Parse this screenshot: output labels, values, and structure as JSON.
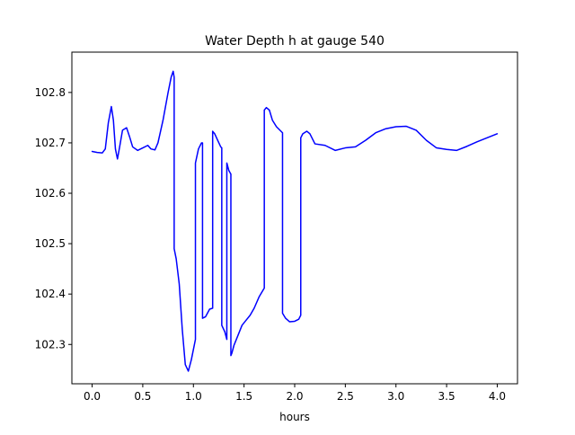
{
  "chart_data": {
    "type": "line",
    "title": "Water Depth h at gauge 540",
    "xlabel": "hours",
    "ylabel": "",
    "xlim": [
      -0.2,
      4.2
    ],
    "ylim": [
      102.222,
      102.88
    ],
    "xticks": [
      0.0,
      0.5,
      1.0,
      1.5,
      2.0,
      2.5,
      3.0,
      3.5,
      4.0
    ],
    "xtick_labels": [
      "0.0",
      "0.5",
      "1.0",
      "1.5",
      "2.0",
      "2.5",
      "3.0",
      "3.5",
      "4.0"
    ],
    "yticks": [
      102.3,
      102.4,
      102.5,
      102.6,
      102.7,
      102.8
    ],
    "ytick_labels": [
      "102.3",
      "102.4",
      "102.5",
      "102.6",
      "102.7",
      "102.8"
    ],
    "grid": false,
    "series": [
      {
        "color": "#0000ff",
        "x": [
          0.0,
          0.05,
          0.1,
          0.13,
          0.16,
          0.19,
          0.21,
          0.23,
          0.25,
          0.27,
          0.3,
          0.34,
          0.37,
          0.4,
          0.45,
          0.5,
          0.55,
          0.58,
          0.62,
          0.65,
          0.7,
          0.75,
          0.78,
          0.8,
          0.81,
          0.81,
          0.83,
          0.86,
          0.89,
          0.92,
          0.95,
          0.98,
          1.02,
          1.02,
          1.05,
          1.08,
          1.09,
          1.09,
          1.12,
          1.16,
          1.19,
          1.19,
          1.21,
          1.24,
          1.27,
          1.28,
          1.28,
          1.31,
          1.33,
          1.33,
          1.35,
          1.37,
          1.37,
          1.38,
          1.4,
          1.44,
          1.48,
          1.52,
          1.56,
          1.6,
          1.65,
          1.7,
          1.7,
          1.72,
          1.75,
          1.78,
          1.82,
          1.88,
          1.88,
          1.91,
          1.95,
          2.0,
          2.04,
          2.06,
          2.06,
          2.08,
          2.12,
          2.15,
          2.2,
          2.3,
          2.4,
          2.5,
          2.6,
          2.7,
          2.8,
          2.9,
          3.0,
          3.1,
          3.2,
          3.3,
          3.4,
          3.5,
          3.6,
          3.7,
          3.8,
          3.9,
          4.0
        ],
        "y": [
          102.683,
          102.681,
          102.68,
          102.688,
          102.74,
          102.772,
          102.745,
          102.688,
          102.668,
          102.69,
          102.725,
          102.73,
          102.712,
          102.692,
          102.685,
          102.69,
          102.695,
          102.688,
          102.686,
          102.7,
          102.745,
          102.8,
          102.83,
          102.842,
          102.83,
          102.49,
          102.47,
          102.42,
          102.33,
          102.26,
          102.247,
          102.27,
          102.31,
          102.66,
          102.688,
          102.7,
          102.7,
          102.352,
          102.355,
          102.37,
          102.372,
          102.723,
          102.718,
          102.705,
          102.692,
          102.69,
          102.338,
          102.325,
          102.31,
          102.66,
          102.645,
          102.638,
          102.278,
          102.283,
          102.298,
          102.318,
          102.338,
          102.348,
          102.358,
          102.372,
          102.395,
          102.412,
          102.765,
          102.77,
          102.765,
          102.745,
          102.732,
          102.72,
          102.362,
          102.352,
          102.345,
          102.346,
          102.35,
          102.358,
          102.71,
          102.718,
          102.723,
          102.718,
          102.698,
          102.695,
          102.685,
          102.69,
          102.692,
          102.705,
          102.72,
          102.728,
          102.732,
          102.733,
          102.725,
          102.705,
          102.69,
          102.687,
          102.685,
          102.693,
          102.702,
          102.71,
          102.718
        ]
      }
    ]
  }
}
